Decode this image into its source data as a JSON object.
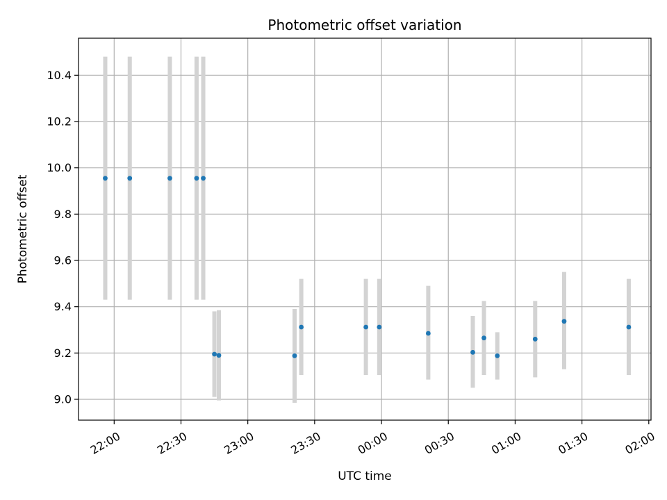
{
  "chart_data": {
    "type": "scatter",
    "title": "Photometric offset variation",
    "xlabel": "UTC time",
    "ylabel": "Photometric offset",
    "x_axis": "time",
    "xlim": [
      "21:44",
      "02:01"
    ],
    "ylim": [
      8.91,
      10.56
    ],
    "grid": true,
    "xticks": [
      "22:00",
      "22:30",
      "23:00",
      "23:30",
      "00:00",
      "00:30",
      "01:00",
      "01:30",
      "02:00"
    ],
    "yticks": [
      9.0,
      9.2,
      9.4,
      9.6,
      9.8,
      10.0,
      10.2,
      10.4
    ],
    "colors": {
      "points": "#1f77b4",
      "error_bars": "#d3d3d3",
      "grid": "#b0b0b0"
    },
    "points": [
      {
        "x": "21:56",
        "y": 9.955,
        "ylow": 9.43,
        "yhigh": 10.48
      },
      {
        "x": "22:07",
        "y": 9.955,
        "ylow": 9.43,
        "yhigh": 10.48
      },
      {
        "x": "22:25",
        "y": 9.955,
        "ylow": 9.43,
        "yhigh": 10.48
      },
      {
        "x": "22:37",
        "y": 9.955,
        "ylow": 9.43,
        "yhigh": 10.48
      },
      {
        "x": "22:40",
        "y": 9.955,
        "ylow": 9.43,
        "yhigh": 10.48
      },
      {
        "x": "22:45",
        "y": 9.195,
        "ylow": 9.01,
        "yhigh": 9.38
      },
      {
        "x": "22:47",
        "y": 9.19,
        "ylow": 8.995,
        "yhigh": 9.385
      },
      {
        "x": "23:21",
        "y": 9.188,
        "ylow": 8.985,
        "yhigh": 9.39
      },
      {
        "x": "23:24",
        "y": 9.312,
        "ylow": 9.105,
        "yhigh": 9.52
      },
      {
        "x": "23:53",
        "y": 9.312,
        "ylow": 9.105,
        "yhigh": 9.52
      },
      {
        "x": "23:59",
        "y": 9.312,
        "ylow": 9.105,
        "yhigh": 9.52
      },
      {
        "x": "00:21",
        "y": 9.285,
        "ylow": 9.085,
        "yhigh": 9.49
      },
      {
        "x": "00:41",
        "y": 9.203,
        "ylow": 9.05,
        "yhigh": 9.36
      },
      {
        "x": "00:46",
        "y": 9.265,
        "ylow": 9.105,
        "yhigh": 9.425
      },
      {
        "x": "00:52",
        "y": 9.188,
        "ylow": 9.085,
        "yhigh": 9.29
      },
      {
        "x": "01:09",
        "y": 9.26,
        "ylow": 9.095,
        "yhigh": 9.425
      },
      {
        "x": "01:22",
        "y": 9.337,
        "ylow": 9.13,
        "yhigh": 9.55
      },
      {
        "x": "01:51",
        "y": 9.312,
        "ylow": 9.105,
        "yhigh": 9.52
      }
    ]
  }
}
